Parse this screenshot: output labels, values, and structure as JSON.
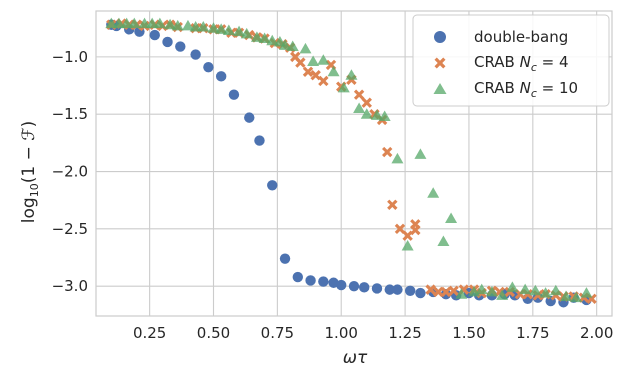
{
  "chart_data": {
    "type": "scatter",
    "xlabel_main": "ωτ",
    "ylabel": {
      "prefix": "log",
      "subscript": "10",
      "suffix": "(1 − ℱ)"
    },
    "xlim": [
      0.04,
      2.06
    ],
    "ylim": [
      -3.26,
      -0.6
    ],
    "xticks": [
      0.25,
      0.5,
      0.75,
      1.0,
      1.25,
      1.5,
      1.75,
      2.0
    ],
    "xtick_labels": [
      "0.25",
      "0.50",
      "0.75",
      "1.00",
      "1.25",
      "1.50",
      "1.75",
      "2.00"
    ],
    "yticks": [
      -1.0,
      -1.5,
      -2.0,
      -2.5,
      -3.0
    ],
    "ytick_labels": [
      "−1.0",
      "−1.5",
      "−2.0",
      "−2.5",
      "−3.0"
    ],
    "grid": true,
    "legend_position": "top-right",
    "series": [
      {
        "name": "double-bang",
        "marker": "circle",
        "color": "#4c72b0",
        "x": [
          0.1,
          0.12,
          0.17,
          0.21,
          0.27,
          0.32,
          0.37,
          0.43,
          0.48,
          0.53,
          0.58,
          0.64,
          0.68,
          0.73,
          0.78,
          0.83,
          0.88,
          0.93,
          0.97,
          1.0,
          1.05,
          1.09,
          1.14,
          1.19,
          1.22,
          1.27,
          1.31,
          1.36,
          1.41,
          1.45,
          1.5,
          1.54,
          1.59,
          1.64,
          1.68,
          1.73,
          1.77,
          1.82,
          1.87,
          1.91,
          1.96
        ],
        "y": [
          -0.72,
          -0.73,
          -0.76,
          -0.78,
          -0.81,
          -0.87,
          -0.91,
          -0.98,
          -1.09,
          -1.17,
          -1.33,
          -1.53,
          -1.73,
          -2.12,
          -2.76,
          -2.92,
          -2.95,
          -2.96,
          -2.97,
          -2.99,
          -3.0,
          -3.01,
          -3.02,
          -3.03,
          -3.03,
          -3.04,
          -3.06,
          -3.05,
          -3.07,
          -3.08,
          -3.06,
          -3.08,
          -3.08,
          -3.07,
          -3.08,
          -3.11,
          -3.1,
          -3.13,
          -3.14,
          -3.1,
          -3.12
        ]
      },
      {
        "name": "CRAB",
        "name_sub": "c",
        "name_suffix": " = 4",
        "marker": "x",
        "color": "#dd8452",
        "x": [
          0.1,
          0.14,
          0.17,
          0.2,
          0.23,
          0.27,
          0.3,
          0.33,
          0.36,
          0.43,
          0.46,
          0.5,
          0.53,
          0.57,
          0.6,
          0.64,
          0.67,
          0.7,
          0.74,
          0.77,
          0.8,
          0.82,
          0.84,
          0.87,
          0.9,
          0.93,
          0.96,
          1.0,
          1.04,
          1.07,
          1.1,
          1.13,
          1.16,
          1.18,
          1.2,
          1.23,
          1.26,
          1.29,
          1.29,
          1.35,
          1.38,
          1.41,
          1.44,
          1.48,
          1.52,
          1.55,
          1.59,
          1.62,
          1.66,
          1.7,
          1.73,
          1.77,
          1.8,
          1.84,
          1.87,
          1.91,
          1.95,
          1.98
        ],
        "y": [
          -0.72,
          -0.71,
          -0.72,
          -0.72,
          -0.73,
          -0.72,
          -0.73,
          -0.72,
          -0.74,
          -0.75,
          -0.75,
          -0.76,
          -0.76,
          -0.79,
          -0.79,
          -0.81,
          -0.83,
          -0.84,
          -0.88,
          -0.89,
          -0.92,
          -1.0,
          -1.05,
          -1.13,
          -1.16,
          -1.21,
          -1.07,
          -1.26,
          -1.2,
          -1.33,
          -1.4,
          -1.5,
          -1.55,
          -1.83,
          -2.29,
          -2.5,
          -2.56,
          -2.46,
          -2.51,
          -3.03,
          -3.05,
          -3.05,
          -3.04,
          -3.03,
          -3.03,
          -3.06,
          -3.04,
          -3.05,
          -3.05,
          -3.07,
          -3.07,
          -3.08,
          -3.07,
          -3.08,
          -3.09,
          -3.09,
          -3.1,
          -3.11
        ]
      },
      {
        "name": "CRAB",
        "name_sub": "c",
        "name_suffix": " = 10",
        "marker": "triangle",
        "color": "#55a868",
        "x": [
          0.1,
          0.13,
          0.16,
          0.19,
          0.23,
          0.26,
          0.29,
          0.33,
          0.36,
          0.4,
          0.43,
          0.46,
          0.5,
          0.53,
          0.56,
          0.6,
          0.63,
          0.67,
          0.7,
          0.73,
          0.76,
          0.78,
          0.81,
          0.86,
          0.89,
          0.93,
          0.97,
          1.01,
          1.04,
          1.07,
          1.1,
          1.14,
          1.17,
          1.22,
          1.26,
          1.31,
          1.36,
          1.4,
          1.43,
          1.47,
          1.52,
          1.55,
          1.59,
          1.63,
          1.67,
          1.72,
          1.76,
          1.8,
          1.84,
          1.88,
          1.92,
          1.96
        ],
        "y": [
          -0.71,
          -0.71,
          -0.71,
          -0.71,
          -0.71,
          -0.71,
          -0.71,
          -0.72,
          -0.73,
          -0.73,
          -0.74,
          -0.74,
          -0.75,
          -0.76,
          -0.77,
          -0.78,
          -0.8,
          -0.83,
          -0.84,
          -0.86,
          -0.87,
          -0.9,
          -0.91,
          -0.93,
          -1.04,
          -1.03,
          -1.13,
          -1.27,
          -1.16,
          -1.45,
          -1.5,
          -1.51,
          -1.52,
          -1.89,
          -2.65,
          -1.85,
          -2.19,
          -2.61,
          -2.41,
          -3.07,
          -3.05,
          -3.03,
          -3.05,
          -3.08,
          -3.01,
          -3.03,
          -3.04,
          -3.06,
          -3.04,
          -3.09,
          -3.1,
          -3.06
        ]
      }
    ]
  }
}
